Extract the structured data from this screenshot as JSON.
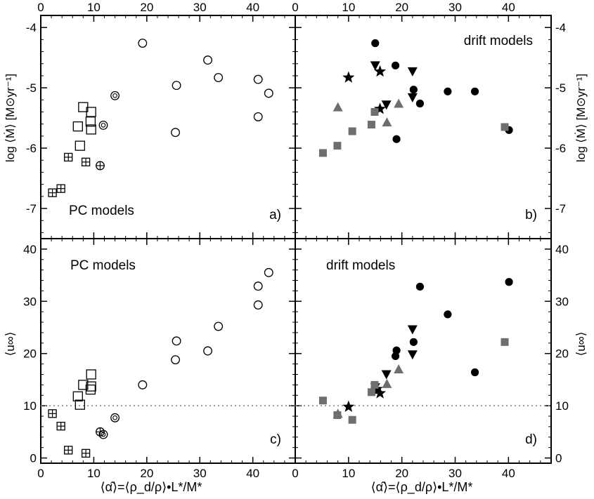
{
  "figure": {
    "x_axis_label": "⟨α̂⟩=⟨ρ_d/ρ⟩•L*/M*",
    "top_axis_ticks": [
      "0",
      "10",
      "20",
      "30",
      "40"
    ],
    "mdot_axis_label": "log ⟨Ṁ⟩ [M⊙yr⁻¹]",
    "u_axis_label": "⟨u∞⟩",
    "colors": {
      "gray": "#6e6e6e",
      "black": "#000000",
      "reference_line": "#808080"
    }
  },
  "chart_data": [
    {
      "panel": "a)",
      "annotation": "PC models",
      "type": "scatter",
      "xlim": [
        0,
        48
      ],
      "ylim": [
        -7.5,
        -3.8
      ],
      "x_ticks": [
        0,
        10,
        20,
        30,
        40
      ],
      "y_ticks": [
        -7,
        -6,
        -5,
        -4
      ],
      "y_tick_labels": [
        "-7",
        "-6",
        "-5",
        "-4"
      ],
      "series": [
        {
          "marker": "open-circle",
          "points": [
            [
              19.2,
              -4.26
            ],
            [
              25.6,
              -4.96
            ],
            [
              25.4,
              -5.74
            ],
            [
              31.5,
              -4.54
            ],
            [
              33.5,
              -4.83
            ],
            [
              41.0,
              -4.86
            ],
            [
              43.0,
              -5.09
            ],
            [
              41.0,
              -5.48
            ]
          ]
        },
        {
          "marker": "open-square",
          "points": [
            [
              8.0,
              -5.32
            ],
            [
              9.5,
              -5.4
            ],
            [
              7.0,
              -5.64
            ],
            [
              9.4,
              -5.56
            ],
            [
              9.5,
              -5.69
            ],
            [
              7.4,
              -5.96
            ]
          ]
        },
        {
          "marker": "circle-dot",
          "points": [
            [
              14.0,
              -5.13
            ],
            [
              11.8,
              -5.62
            ]
          ]
        },
        {
          "marker": "circle-plus",
          "points": [
            [
              11.2,
              -6.29
            ]
          ]
        },
        {
          "marker": "boxed-plus",
          "points": [
            [
              5.2,
              -6.15
            ],
            [
              8.5,
              -6.23
            ],
            [
              3.8,
              -6.67
            ],
            [
              2.2,
              -6.74
            ]
          ]
        }
      ]
    },
    {
      "panel": "b)",
      "annotation": "drift models",
      "type": "scatter",
      "xlim": [
        0,
        48
      ],
      "ylim": [
        -7.5,
        -3.8
      ],
      "x_ticks": [
        0,
        10,
        20,
        30,
        40
      ],
      "y_ticks": [
        -7,
        -6,
        -5,
        -4
      ],
      "y_tick_labels": [
        "-7",
        "-6",
        "-5",
        "-4"
      ],
      "series": [
        {
          "marker": "filled-circle",
          "points": [
            [
              15.0,
              -4.26
            ],
            [
              18.8,
              -4.63
            ],
            [
              22.2,
              -5.03
            ],
            [
              23.4,
              -5.26
            ],
            [
              28.6,
              -5.06
            ],
            [
              33.7,
              -5.06
            ],
            [
              40.1,
              -5.7
            ],
            [
              19.0,
              -5.85
            ]
          ]
        },
        {
          "marker": "filled-triangle-down",
          "points": [
            [
              15.0,
              -4.63
            ],
            [
              22.0,
              -4.73
            ],
            [
              17.1,
              -5.28
            ],
            [
              22.0,
              -5.16
            ]
          ]
        },
        {
          "marker": "filled-star",
          "points": [
            [
              10.0,
              -4.83
            ],
            [
              15.9,
              -4.73
            ],
            [
              15.9,
              -5.35
            ]
          ]
        },
        {
          "marker": "gray-triangle-up",
          "points": [
            [
              8.0,
              -5.32
            ],
            [
              17.2,
              -5.57
            ],
            [
              19.4,
              -5.26
            ]
          ]
        },
        {
          "marker": "gray-square",
          "points": [
            [
              5.2,
              -6.08
            ],
            [
              7.9,
              -5.96
            ],
            [
              10.7,
              -5.72
            ],
            [
              14.3,
              -5.61
            ],
            [
              14.9,
              -5.4
            ],
            [
              39.3,
              -5.65
            ]
          ]
        }
      ]
    },
    {
      "panel": "c)",
      "annotation": "PC models",
      "type": "scatter",
      "xlim": [
        0,
        48
      ],
      "ylim": [
        -1,
        42
      ],
      "x_ticks": [
        0,
        10,
        20,
        30,
        40
      ],
      "y_ticks": [
        0,
        10,
        20,
        30,
        40
      ],
      "y_tick_labels": [
        "0",
        "10",
        "20",
        "30",
        "40"
      ],
      "reference_line": 10,
      "series": [
        {
          "marker": "open-circle",
          "points": [
            [
              19.2,
              14.0
            ],
            [
              25.6,
              22.4
            ],
            [
              25.4,
              18.8
            ],
            [
              31.5,
              20.5
            ],
            [
              33.5,
              25.2
            ],
            [
              41.0,
              32.9
            ],
            [
              43.0,
              35.5
            ],
            [
              41.0,
              29.3
            ]
          ]
        },
        {
          "marker": "open-square",
          "points": [
            [
              9.5,
              16.0
            ],
            [
              8.0,
              14.0
            ],
            [
              9.5,
              13.7
            ],
            [
              9.4,
              13.1
            ],
            [
              7.0,
              11.8
            ],
            [
              7.4,
              10.2
            ]
          ]
        },
        {
          "marker": "circle-dot",
          "points": [
            [
              14.0,
              7.7
            ],
            [
              11.8,
              4.5
            ]
          ]
        },
        {
          "marker": "circle-plus",
          "points": [
            [
              11.2,
              5.0
            ]
          ]
        },
        {
          "marker": "boxed-plus",
          "points": [
            [
              2.2,
              8.5
            ],
            [
              3.8,
              6.1
            ],
            [
              5.2,
              1.5
            ],
            [
              8.5,
              0.9
            ]
          ]
        }
      ]
    },
    {
      "panel": "d)",
      "annotation": "drift models",
      "type": "scatter",
      "xlim": [
        0,
        48
      ],
      "ylim": [
        -1,
        42
      ],
      "x_ticks": [
        0,
        10,
        20,
        30,
        40
      ],
      "y_ticks": [
        0,
        10,
        20,
        30,
        40
      ],
      "y_tick_labels": [
        "0",
        "10",
        "20",
        "30",
        "40"
      ],
      "reference_line": 10,
      "series": [
        {
          "marker": "filled-circle",
          "points": [
            [
              23.4,
              32.8
            ],
            [
              40.1,
              33.7
            ],
            [
              28.6,
              27.5
            ],
            [
              22.2,
              22.2
            ],
            [
              19.0,
              20.6
            ],
            [
              18.8,
              19.5
            ],
            [
              33.7,
              16.4
            ],
            [
              15.0,
              13.0
            ]
          ]
        },
        {
          "marker": "filled-triangle-down",
          "points": [
            [
              22.0,
              24.6
            ],
            [
              22.0,
              19.8
            ],
            [
              17.1,
              16.0
            ],
            [
              15.0,
              13.5
            ]
          ]
        },
        {
          "marker": "filled-star",
          "points": [
            [
              15.3,
              13.2
            ],
            [
              15.9,
              12.4
            ],
            [
              10.0,
              9.8
            ]
          ]
        },
        {
          "marker": "gray-triangle-up",
          "points": [
            [
              19.4,
              17.0
            ],
            [
              17.2,
              14.2
            ],
            [
              8.0,
              8.5
            ]
          ]
        },
        {
          "marker": "gray-square",
          "points": [
            [
              39.3,
              22.2
            ],
            [
              14.9,
              14.0
            ],
            [
              14.3,
              12.6
            ],
            [
              5.2,
              11.0
            ],
            [
              7.9,
              8.2
            ],
            [
              10.7,
              7.3
            ]
          ]
        }
      ]
    }
  ]
}
